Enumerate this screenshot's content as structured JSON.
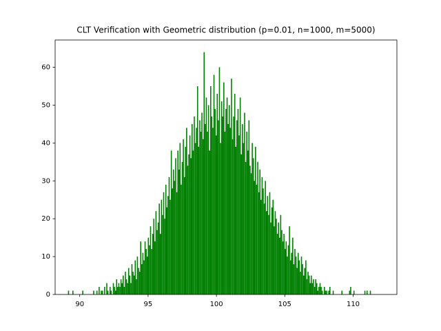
{
  "chart_data": {
    "type": "histogram",
    "title": "CLT Verification with Geometric distribution (p=0.01, n=1000, m=5000)",
    "color": "#008000",
    "xlim": [
      88.2,
      113.2
    ],
    "ylim": [
      0,
      67.2
    ],
    "xticks": [
      90,
      95,
      100,
      105,
      110
    ],
    "yticks": [
      0,
      10,
      20,
      30,
      40,
      50,
      60
    ],
    "bins": [
      88.9,
      88.98,
      89.06,
      89.14,
      89.22,
      89.3,
      89.38,
      89.46,
      89.54,
      89.62,
      89.7,
      89.78,
      89.86,
      89.94,
      90.02,
      90.1,
      90.18,
      90.26,
      90.34,
      90.42,
      90.5,
      90.58,
      90.66,
      90.74,
      90.82,
      90.9,
      90.98,
      91.06,
      91.14,
      91.22,
      91.3,
      91.38,
      91.46,
      91.54,
      91.62,
      91.7,
      91.78,
      91.86,
      91.94,
      92.02,
      92.1,
      92.18,
      92.26,
      92.34,
      92.42,
      92.5,
      92.58,
      92.66,
      92.74,
      92.82,
      92.9,
      92.98,
      93.06,
      93.14,
      93.22,
      93.3,
      93.38,
      93.46,
      93.54,
      93.62,
      93.7,
      93.78,
      93.86,
      93.94,
      94.02,
      94.1,
      94.18,
      94.26,
      94.34,
      94.42,
      94.5,
      94.58,
      94.66,
      94.74,
      94.82,
      94.9,
      94.98,
      95.06,
      95.14,
      95.22,
      95.3,
      95.38,
      95.46,
      95.54,
      95.62,
      95.7,
      95.78,
      95.86,
      95.94,
      96.02,
      96.1,
      96.18,
      96.26,
      96.34,
      96.42,
      96.5,
      96.58,
      96.66,
      96.74,
      96.82,
      96.9,
      96.98,
      97.06,
      97.14,
      97.22,
      97.3,
      97.38,
      97.46,
      97.54,
      97.62,
      97.7,
      97.78,
      97.86,
      97.94,
      98.02,
      98.1,
      98.18,
      98.26,
      98.34,
      98.42,
      98.5,
      98.58,
      98.66,
      98.74,
      98.82,
      98.9,
      98.98,
      99.06,
      99.14,
      99.22,
      99.3,
      99.38,
      99.46,
      99.54,
      99.62,
      99.7,
      99.78,
      99.86,
      99.94,
      100.02,
      100.1,
      100.18,
      100.26,
      100.34,
      100.42,
      100.5,
      100.58,
      100.66,
      100.74,
      100.82,
      100.9,
      100.98,
      101.06,
      101.14,
      101.22,
      101.3,
      101.38,
      101.46,
      101.54,
      101.62,
      101.7,
      101.78,
      101.86,
      101.94,
      102.02,
      102.1,
      102.18,
      102.26,
      102.34,
      102.42,
      102.5,
      102.58,
      102.66,
      102.74,
      102.82,
      102.9,
      102.98,
      103.06,
      103.14,
      103.22,
      103.3,
      103.38,
      103.46,
      103.54,
      103.62,
      103.7,
      103.78,
      103.86,
      103.94,
      104.02,
      104.1,
      104.18,
      104.26,
      104.34,
      104.42,
      104.5,
      104.58,
      104.66,
      104.74,
      104.82,
      104.9,
      104.98,
      105.06,
      105.14,
      105.22,
      105.3,
      105.38,
      105.46,
      105.54,
      105.62,
      105.7,
      105.78,
      105.86,
      105.94,
      106.02,
      106.1,
      106.18,
      106.26,
      106.34,
      106.42,
      106.5,
      106.58,
      106.66,
      106.74,
      106.82,
      106.9,
      106.98,
      107.06,
      107.14,
      107.22,
      107.3,
      107.38,
      107.46,
      107.54,
      107.62,
      107.7,
      107.78,
      107.86,
      107.94,
      108.02,
      108.1,
      108.18,
      108.26,
      108.34,
      108.42,
      108.5,
      108.58,
      108.66,
      108.74,
      108.82,
      108.9,
      108.98,
      109.06,
      109.14,
      109.22,
      109.3,
      109.38,
      109.46,
      109.54,
      109.62,
      109.7,
      109.78,
      109.86,
      109.94,
      110.02,
      110.1,
      110.18,
      110.26,
      110.34,
      110.42,
      110.5,
      110.58,
      110.66,
      110.74,
      110.82,
      110.9,
      110.98,
      111.06,
      111.14,
      111.22,
      111.3
    ],
    "values": [
      0,
      0,
      0,
      1,
      0,
      0,
      0,
      1,
      0,
      0,
      0,
      0,
      0,
      0,
      0,
      0,
      1,
      0,
      0,
      0,
      0,
      0,
      0,
      0,
      0,
      0,
      1,
      0,
      0,
      1,
      0,
      2,
      0,
      1,
      1,
      0,
      2,
      0,
      3,
      1,
      0,
      2,
      1,
      0,
      3,
      2,
      1,
      4,
      2,
      3,
      2,
      4,
      3,
      5,
      2,
      6,
      4,
      3,
      7,
      5,
      3,
      8,
      6,
      5,
      9,
      4,
      10,
      7,
      6,
      14,
      8,
      11,
      9,
      14,
      12,
      10,
      15,
      13,
      18,
      12,
      16,
      20,
      14,
      22,
      17,
      19,
      24,
      16,
      25,
      21,
      27,
      20,
      29,
      23,
      26,
      31,
      25,
      38,
      28,
      33,
      30,
      36,
      27,
      38,
      33,
      40,
      29,
      35,
      41,
      31,
      39,
      44,
      34,
      37,
      42,
      36,
      45,
      38,
      47,
      40,
      44,
      55,
      39,
      46,
      43,
      48,
      41,
      64,
      45,
      52,
      43,
      50,
      38,
      55,
      47,
      44,
      58,
      49,
      42,
      53,
      46,
      60,
      40,
      51,
      47,
      56,
      43,
      49,
      52,
      45,
      50,
      44,
      57,
      41,
      47,
      53,
      39,
      46,
      49,
      42,
      52,
      37,
      45,
      40,
      48,
      35,
      43,
      38,
      46,
      34,
      32,
      40,
      36,
      30,
      39,
      29,
      35,
      27,
      33,
      25,
      31,
      28,
      24,
      30,
      22,
      26,
      21,
      27,
      19,
      23,
      25,
      18,
      22,
      20,
      16,
      19,
      15,
      21,
      17,
      14,
      16,
      12,
      14,
      10,
      13,
      18,
      9,
      11,
      15,
      8,
      12,
      10,
      7,
      11,
      9,
      6,
      10,
      8,
      5,
      7,
      9,
      4,
      6,
      5,
      3,
      5,
      3,
      4,
      2,
      4,
      3,
      1,
      2,
      3,
      2,
      1,
      0,
      2,
      1,
      1,
      0,
      1,
      2,
      0,
      0,
      1,
      0,
      0,
      0,
      0,
      0,
      0,
      0,
      1,
      0,
      0,
      0,
      0,
      0,
      0,
      1,
      2,
      0,
      0,
      1,
      0,
      0,
      0,
      0,
      0,
      0,
      0,
      0,
      0,
      1,
      0,
      1,
      0,
      0,
      1
    ]
  }
}
